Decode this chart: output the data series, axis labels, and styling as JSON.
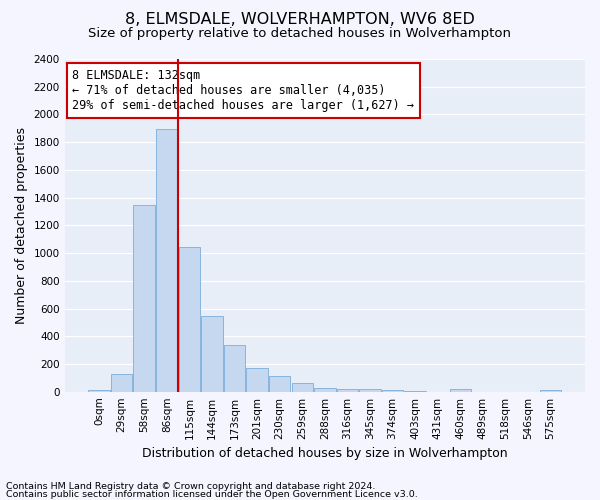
{
  "title": "8, ELMSDALE, WOLVERHAMPTON, WV6 8ED",
  "subtitle": "Size of property relative to detached houses in Wolverhampton",
  "xlabel": "Distribution of detached houses by size in Wolverhampton",
  "ylabel": "Number of detached properties",
  "bar_color": "#c5d8f0",
  "bar_edge_color": "#7aaedc",
  "plot_bg_color": "#e8eef8",
  "fig_bg_color": "#f5f5ff",
  "grid_color": "#ffffff",
  "categories": [
    "0sqm",
    "29sqm",
    "58sqm",
    "86sqm",
    "115sqm",
    "144sqm",
    "173sqm",
    "201sqm",
    "230sqm",
    "259sqm",
    "288sqm",
    "316sqm",
    "345sqm",
    "374sqm",
    "403sqm",
    "431sqm",
    "460sqm",
    "489sqm",
    "518sqm",
    "546sqm",
    "575sqm"
  ],
  "values": [
    15,
    125,
    1345,
    1895,
    1045,
    545,
    335,
    170,
    110,
    62,
    28,
    22,
    18,
    12,
    8,
    0,
    20,
    0,
    0,
    0,
    12
  ],
  "ylim": [
    0,
    2400
  ],
  "yticks": [
    0,
    200,
    400,
    600,
    800,
    1000,
    1200,
    1400,
    1600,
    1800,
    2000,
    2200,
    2400
  ],
  "vline_x": 4.5,
  "vline_color": "#cc0000",
  "annotation_text": "8 ELMSDALE: 132sqm\n← 71% of detached houses are smaller (4,035)\n29% of semi-detached houses are larger (1,627) →",
  "annotation_box_color": "#cc0000",
  "footer1": "Contains HM Land Registry data © Crown copyright and database right 2024.",
  "footer2": "Contains public sector information licensed under the Open Government Licence v3.0.",
  "title_fontsize": 11.5,
  "subtitle_fontsize": 9.5,
  "xlabel_fontsize": 9,
  "ylabel_fontsize": 9,
  "tick_fontsize": 7.5,
  "annotation_fontsize": 8.5,
  "footer_fontsize": 6.8
}
